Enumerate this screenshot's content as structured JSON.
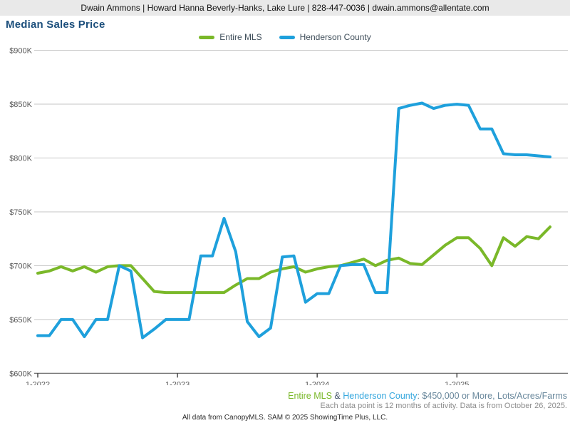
{
  "header": {
    "text": "Dwain Ammons | Howard Hanna Beverly-Hanks, Lake Lure | 828-447-0036 | dwain.ammons@allentate.com"
  },
  "title": "Median Sales Price",
  "colors": {
    "title": "#1c4f7c",
    "header_bg": "#e9e9e9",
    "entire_mls": "#7ab829",
    "henderson_county": "#1ea0dc",
    "footer_series2": "#35a7de",
    "footer_amp": "#44546a",
    "footer_criteria": "#69889c",
    "footer_note": "#8c8c8c",
    "axis_label": "#595959",
    "gridline": "#c6c6c6",
    "axis_line": "#4a4a4a"
  },
  "chart_data": {
    "type": "line",
    "title": "Median Sales Price",
    "values_unit": "USD thousands",
    "x_unit": "month",
    "n_points": 45,
    "x_start": "1-2022",
    "x_end": "9-2025",
    "grid": "horizontal",
    "legend_position": "top-center",
    "ylim": [
      600,
      900
    ],
    "x_ticks": [
      {
        "label": "1-2022",
        "index": 0
      },
      {
        "label": "1-2023",
        "index": 12
      },
      {
        "label": "1-2024",
        "index": 24
      },
      {
        "label": "1-2025",
        "index": 36
      }
    ],
    "y_ticks": [
      {
        "label": "$600K",
        "value": 600
      },
      {
        "label": "$650K",
        "value": 650
      },
      {
        "label": "$700K",
        "value": 700
      },
      {
        "label": "$750K",
        "value": 750
      },
      {
        "label": "$800K",
        "value": 800
      },
      {
        "label": "$850K",
        "value": 850
      },
      {
        "label": "$900K",
        "value": 900
      }
    ],
    "series": [
      {
        "name": "Entire MLS",
        "color": "#7ab829",
        "values": [
          693,
          695,
          699,
          695,
          699,
          694,
          699,
          700,
          700,
          688,
          676,
          675,
          675,
          675,
          675,
          675,
          675,
          682,
          688,
          688,
          694,
          697,
          699,
          694,
          697,
          699,
          700,
          703,
          706,
          700,
          705,
          707,
          702,
          701,
          710,
          719,
          726,
          726,
          716,
          700,
          726,
          718,
          727,
          725,
          736
        ]
      },
      {
        "name": "Henderson County",
        "color": "#1ea0dc",
        "values": [
          635,
          635,
          650,
          650,
          634,
          650,
          650,
          700,
          695,
          633,
          641,
          650,
          650,
          650,
          709,
          709,
          744,
          713,
          648,
          634,
          642,
          708,
          709,
          666,
          674,
          674,
          700,
          701,
          701,
          675,
          675,
          846,
          849,
          851,
          846,
          849,
          850,
          849,
          827,
          827,
          804,
          803,
          803,
          802,
          801
        ]
      }
    ]
  },
  "footer": {
    "filter_line": {
      "series1": "Entire MLS",
      "separator": " & ",
      "series2": "Henderson County",
      "criteria": ": $450,000 or More, Lots/Acres/Farms"
    },
    "note": "Each data point is 12 months of activity. Data is from October 26, 2025.",
    "credit": "All data from CanopyMLS. SAM © 2025 ShowingTime Plus, LLC."
  }
}
